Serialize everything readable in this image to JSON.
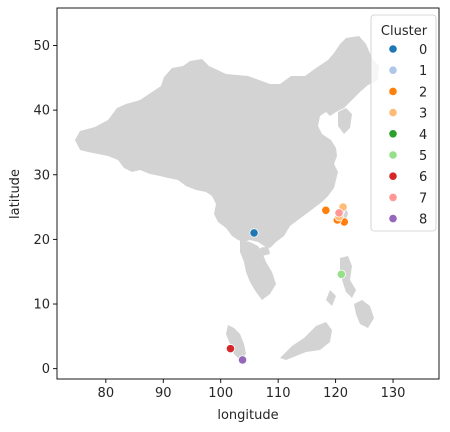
{
  "chart_data": {
    "type": "scatter",
    "xlabel": "longitude",
    "ylabel": "latitude",
    "xlim": [
      71.5,
      138
    ],
    "ylim": [
      -1.6,
      55.8
    ],
    "xticks": [
      80,
      90,
      100,
      110,
      120,
      130
    ],
    "yticks": [
      0,
      10,
      20,
      30,
      40,
      50
    ],
    "grid": false,
    "legend": {
      "title": "Cluster",
      "placement": "top-right",
      "entries": [
        "0",
        "1",
        "2",
        "3",
        "4",
        "5",
        "6",
        "7",
        "8"
      ]
    },
    "colors": [
      "#1f77b4",
      "#aec7e8",
      "#ff7f0e",
      "#ffbb78",
      "#2ca02c",
      "#98df8a",
      "#d62728",
      "#ff9896",
      "#9467bd"
    ],
    "map_fill": "#d3d3d3",
    "series": [
      {
        "name": "0",
        "points": [
          [
            105.8,
            21.0
          ]
        ]
      },
      {
        "name": "1",
        "points": [
          [
            120.8,
            24.3
          ]
        ]
      },
      {
        "name": "2",
        "points": [
          [
            118.3,
            24.5
          ],
          [
            121.5,
            22.7
          ],
          [
            120.3,
            23.0
          ]
        ]
      },
      {
        "name": "3",
        "points": [
          [
            121.3,
            25.0
          ],
          [
            120.6,
            23.5
          ]
        ]
      },
      {
        "name": "4",
        "points": []
      },
      {
        "name": "5",
        "points": [
          [
            121.0,
            14.6
          ]
        ]
      },
      {
        "name": "6",
        "points": [
          [
            101.7,
            3.1
          ]
        ]
      },
      {
        "name": "7",
        "points": [
          [
            120.6,
            24.1
          ]
        ]
      },
      {
        "name": "8",
        "points": [
          [
            103.8,
            1.35
          ]
        ]
      }
    ]
  }
}
